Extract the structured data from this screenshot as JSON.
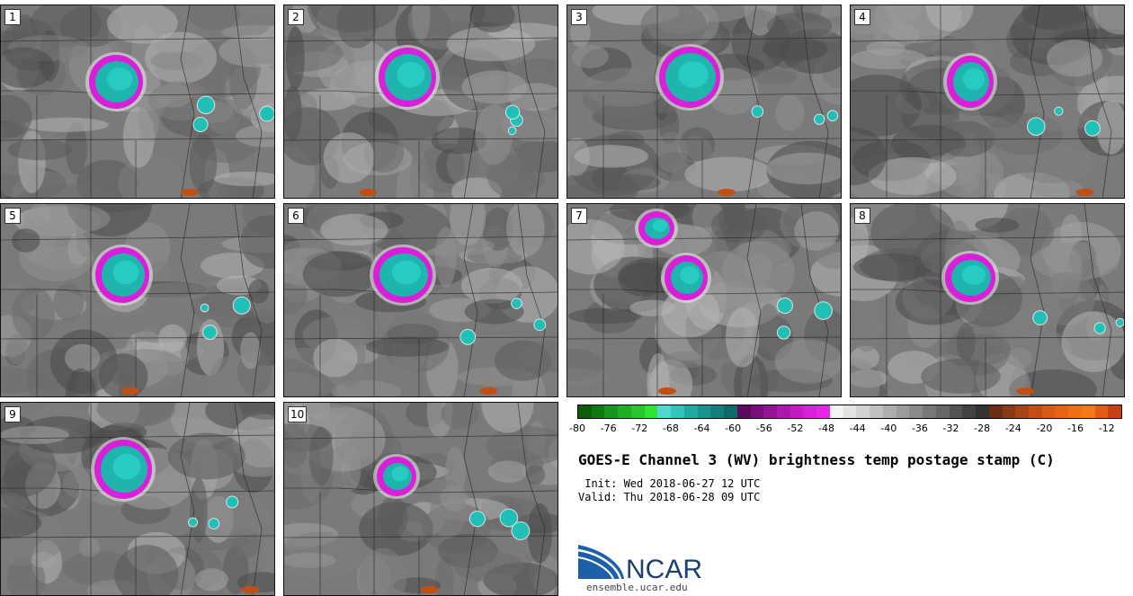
{
  "panels": [
    {
      "label": "1"
    },
    {
      "label": "2"
    },
    {
      "label": "3"
    },
    {
      "label": "4"
    },
    {
      "label": "5"
    },
    {
      "label": "6"
    },
    {
      "label": "7"
    },
    {
      "label": "8"
    },
    {
      "label": "9"
    },
    {
      "label": "10"
    }
  ],
  "colorbar": {
    "colors": [
      "#0b5c0b",
      "#0f7a0f",
      "#16961a",
      "#1fb021",
      "#28c82c",
      "#2ee532",
      "#4fd8d0",
      "#30c4bc",
      "#20aaa4",
      "#18948f",
      "#127f7b",
      "#0e6b68",
      "#5c0a5c",
      "#7a0e7a",
      "#951295",
      "#ad17ad",
      "#c41bc4",
      "#d91fd9",
      "#e925e9",
      "#f2f2f2",
      "#e3e3e3",
      "#d2d2d2",
      "#c0c0c0",
      "#aeaeae",
      "#9c9c9c",
      "#8a8a8a",
      "#787878",
      "#666666",
      "#545454",
      "#424242",
      "#333333",
      "#6b2e14",
      "#8a3a14",
      "#a84414",
      "#c14f14",
      "#d85a14",
      "#e86414",
      "#f06e14",
      "#f57819",
      "#e25a14",
      "#c84112"
    ],
    "ticks": [
      "-80",
      "-76",
      "-72",
      "-68",
      "-64",
      "-60",
      "-56",
      "-52",
      "-48",
      "-44",
      "-40",
      "-36",
      "-32",
      "-28",
      "-24",
      "-20",
      "-16",
      "-12"
    ],
    "min": -80,
    "max": -10
  },
  "title": "GOES-E Channel 3 (WV) brightness temp postage stamp (C)",
  "init_line": " Init: Wed 2018-06-27 12 UTC",
  "valid_line": "Valid: Thu 2018-06-28 09 UTC",
  "logo_text": "NCAR",
  "logo_url": "ensemble.ucar.edu",
  "colors": {
    "magenta": "#d91fd9",
    "cyan": "#20c0b8",
    "gray_dark": "#4a4a4a",
    "gray_light": "#9a9a9a"
  }
}
